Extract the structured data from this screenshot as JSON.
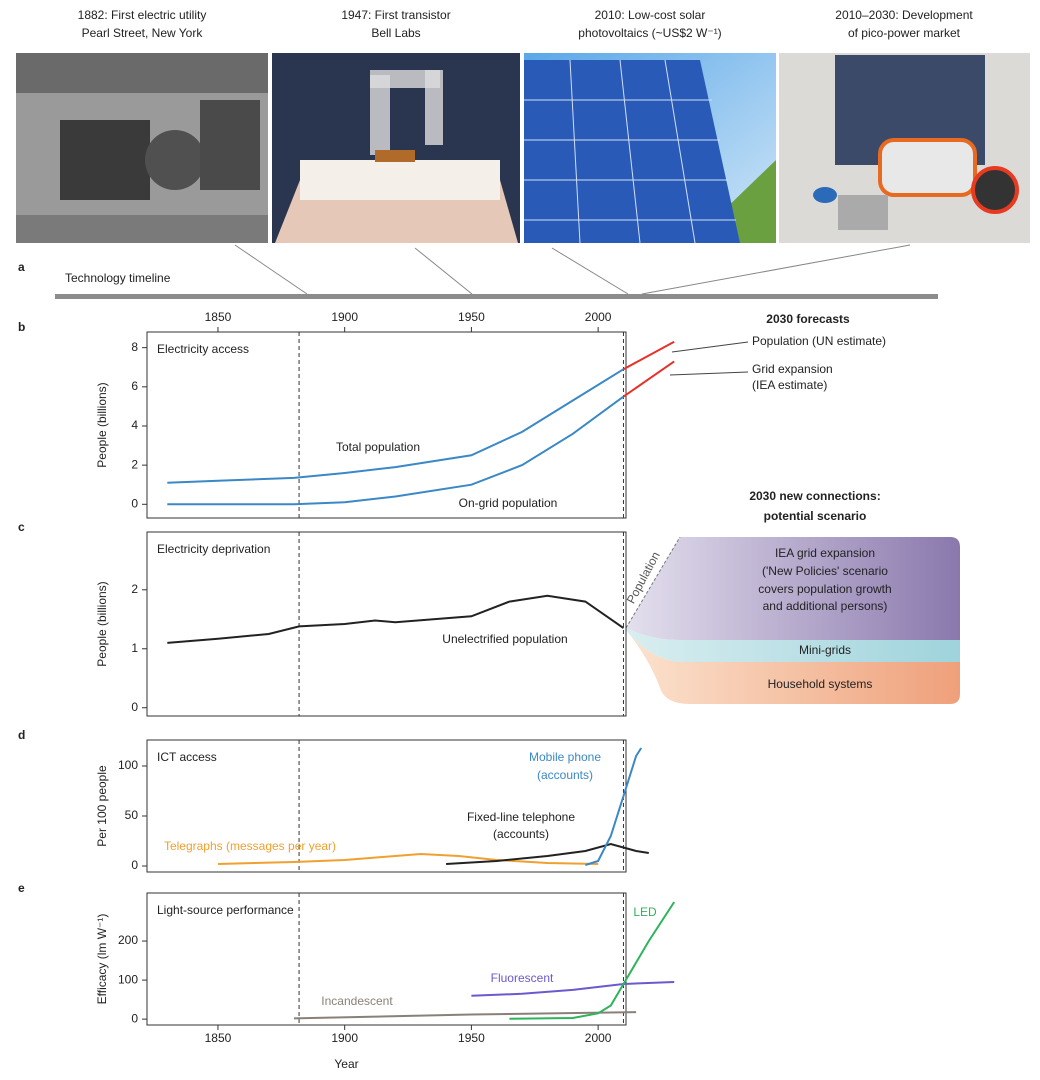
{
  "photos": [
    {
      "caption": [
        "1882: First electric utility",
        "Pearl Street, New York"
      ]
    },
    {
      "caption": [
        "1947: First transistor",
        "Bell Labs"
      ]
    },
    {
      "caption": [
        "2010: Low-cost solar",
        "photovoltaics (~US$2 W⁻¹)"
      ]
    },
    {
      "caption": [
        "2010–2030: Development",
        "of pico-power market"
      ]
    }
  ],
  "timeline": {
    "label": "a",
    "title": "Technology timeline"
  },
  "chart_data": [
    {
      "type": "line",
      "label": "b",
      "title": "Electricity access",
      "ylabel": "People (billions)",
      "xlim": [
        1822,
        2011
      ],
      "xticks": [
        1850,
        1900,
        1950,
        2000
      ],
      "ylim": [
        -0.7,
        8.8
      ],
      "yticks": [
        0,
        2,
        4,
        6,
        8
      ],
      "vlines": [
        1882,
        2010
      ],
      "series": [
        {
          "color": "#3b88c6",
          "x": [
            1830,
            1850,
            1880,
            1900,
            1920,
            1950,
            1970,
            1990,
            2010
          ],
          "values": [
            1.1,
            1.2,
            1.35,
            1.6,
            1.9,
            2.5,
            3.7,
            5.3,
            6.9
          ]
        },
        {
          "color": "#3b88c6",
          "x": [
            1830,
            1880,
            1900,
            1920,
            1950,
            1970,
            1990,
            2010
          ],
          "values": [
            0,
            0,
            0.1,
            0.4,
            1.0,
            2.0,
            3.6,
            5.5
          ]
        },
        {
          "color": "#e8302a",
          "x": [
            2010,
            2030
          ],
          "values": [
            6.9,
            8.3
          ]
        },
        {
          "color": "#e8302a",
          "x": [
            2010,
            2030
          ],
          "values": [
            5.5,
            7.3
          ]
        }
      ],
      "annotations": [
        "Total population",
        "On-grid population",
        "2030 forecasts",
        "Population (UN estimate)",
        "Grid expansion",
        "(IEA estimate)"
      ]
    },
    {
      "type": "line",
      "label": "c",
      "title": "Electricity deprivation",
      "ylabel": "People (billions)",
      "xlim": [
        1822,
        2011
      ],
      "ylim": [
        -0.14,
        2.98
      ],
      "yticks": [
        0,
        1,
        2
      ],
      "vlines": [
        1882,
        2010
      ],
      "series": [
        {
          "color": "#222222",
          "x": [
            1830,
            1850,
            1870,
            1882,
            1900,
            1912,
            1920,
            1950,
            1965,
            1980,
            1995,
            2010
          ],
          "values": [
            1.1,
            1.17,
            1.25,
            1.38,
            1.42,
            1.48,
            1.45,
            1.55,
            1.8,
            1.9,
            1.8,
            1.35
          ]
        }
      ],
      "annotations": [
        "Unelectrified population",
        "Population",
        "2030 new connections:",
        "potential scenario",
        "IEA grid expansion",
        "('New Policies' scenario",
        "covers population growth",
        "and additional persons)",
        "Mini-grids",
        "Household systems"
      ]
    },
    {
      "type": "line",
      "label": "d",
      "title": "ICT access",
      "ylabel": "Per 100 people",
      "xlim": [
        1822,
        2011
      ],
      "ylim": [
        -6,
        126
      ],
      "yticks": [
        0,
        50,
        100
      ],
      "vlines": [
        1882,
        2010
      ],
      "series": [
        {
          "color": "#f0a030",
          "x": [
            1850,
            1880,
            1900,
            1910,
            1930,
            1945,
            1960,
            1980,
            2000
          ],
          "values": [
            2,
            4,
            6,
            8,
            12,
            10,
            6,
            3,
            2
          ]
        },
        {
          "color": "#222222",
          "x": [
            1940,
            1960,
            1980,
            1995,
            2005,
            2015,
            2020
          ],
          "values": [
            2,
            5,
            10,
            15,
            22,
            15,
            13
          ]
        },
        {
          "color": "#3b88c6",
          "x": [
            1995,
            2000,
            2005,
            2010,
            2015,
            2017
          ],
          "values": [
            1,
            5,
            30,
            70,
            110,
            118
          ]
        }
      ],
      "annotations": [
        "Mobile phone",
        "(accounts)",
        "Fixed-line telephone",
        "(accounts)",
        "Telegraphs (messages per year)"
      ]
    },
    {
      "type": "line",
      "label": "e",
      "title": "Light-source performance",
      "ylabel": "Efficacy (lm W⁻¹)",
      "xlabel": "Year",
      "xlim": [
        1822,
        2011
      ],
      "xticks": [
        1850,
        1900,
        1950,
        2000
      ],
      "ylim": [
        -15,
        323
      ],
      "yticks": [
        0,
        100,
        200
      ],
      "vlines": [
        1882,
        2010
      ],
      "series": [
        {
          "color": "#8a8078",
          "x": [
            1880,
            1950,
            2015
          ],
          "values": [
            2,
            12,
            18
          ]
        },
        {
          "color": "#6a5acd",
          "x": [
            1950,
            1970,
            1990,
            2010,
            2030
          ],
          "values": [
            60,
            65,
            75,
            90,
            95
          ]
        },
        {
          "color": "#2db45a",
          "x": [
            1965,
            1990,
            2000,
            2005,
            2010,
            2020,
            2030
          ],
          "values": [
            1,
            3,
            15,
            35,
            90,
            200,
            300
          ]
        }
      ],
      "annotations": [
        "LED",
        "Fluorescent",
        "Incandescent"
      ]
    }
  ]
}
